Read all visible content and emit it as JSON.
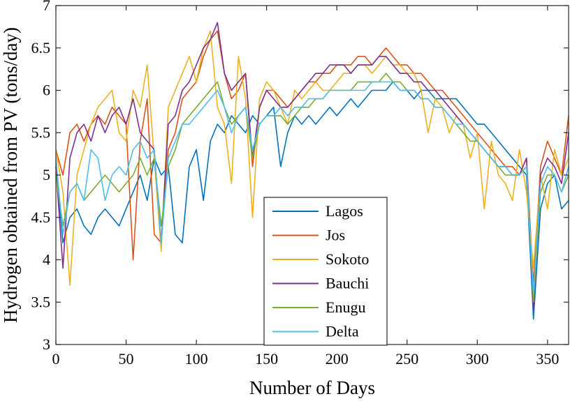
{
  "chart_data": {
    "type": "line",
    "title": "",
    "xlabel": "Number of Days",
    "ylabel": "Hydrogen obtained from PV (tons/day)",
    "xlim": [
      0,
      365
    ],
    "ylim": [
      3,
      7
    ],
    "xticks": [
      0,
      50,
      100,
      150,
      200,
      250,
      300,
      350
    ],
    "yticks": [
      3,
      3.5,
      4,
      4.5,
      5,
      5.5,
      6,
      6.5,
      7
    ],
    "xtick_labels": [
      "0",
      "50",
      "100",
      "150",
      "200",
      "250",
      "300",
      "350"
    ],
    "ytick_labels": [
      "3",
      "3.5",
      "4",
      "4.5",
      "5",
      "5.5",
      "6",
      "6.5",
      "7"
    ],
    "grid": false,
    "legend_position": "bottom-center",
    "x_day_step": 5,
    "series": [
      {
        "name": "Lagos",
        "color": "#0072BD",
        "values": [
          5.1,
          4.2,
          4.5,
          4.6,
          4.4,
          4.3,
          4.5,
          4.6,
          4.5,
          4.4,
          4.6,
          4.8,
          5.0,
          4.7,
          5.2,
          5.0,
          5.1,
          4.3,
          4.2,
          5.1,
          5.3,
          4.7,
          5.4,
          5.6,
          5.5,
          5.7,
          5.6,
          5.5,
          5.7,
          5.6,
          5.7,
          5.8,
          5.1,
          5.5,
          5.7,
          5.6,
          5.7,
          5.6,
          5.7,
          5.8,
          5.7,
          5.8,
          5.9,
          5.8,
          5.9,
          6.0,
          6.0,
          6.0,
          6.1,
          6.0,
          6.0,
          5.9,
          6.0,
          6.0,
          5.9,
          5.9,
          5.9,
          5.9,
          5.8,
          5.7,
          5.6,
          5.6,
          5.5,
          5.4,
          5.3,
          5.2,
          5.1,
          5.0,
          3.3,
          4.6,
          4.9,
          5.0,
          4.6,
          4.7
        ]
      },
      {
        "name": "Jos",
        "color": "#D95319",
        "values": [
          5.3,
          5.0,
          5.5,
          5.6,
          5.4,
          5.6,
          5.7,
          5.6,
          5.8,
          5.7,
          5.6,
          4.0,
          5.4,
          5.9,
          4.3,
          4.2,
          5.3,
          5.5,
          5.9,
          6.0,
          6.1,
          6.4,
          6.6,
          6.7,
          6.2,
          5.9,
          6.0,
          6.2,
          5.1,
          5.8,
          6.0,
          6.0,
          5.9,
          5.8,
          5.9,
          6.0,
          6.1,
          6.1,
          6.2,
          6.2,
          6.3,
          6.3,
          6.3,
          6.4,
          6.4,
          6.3,
          6.4,
          6.5,
          6.4,
          6.3,
          6.3,
          6.2,
          6.2,
          6.1,
          6.0,
          6.0,
          5.9,
          5.8,
          5.7,
          5.6,
          5.5,
          5.4,
          5.3,
          5.2,
          5.1,
          5.1,
          5.0,
          5.2,
          3.7,
          5.1,
          5.4,
          5.2,
          5.0,
          5.7
        ]
      },
      {
        "name": "Sokoto",
        "color": "#EDB120",
        "values": [
          5.3,
          4.8,
          3.7,
          5.0,
          5.3,
          5.6,
          5.8,
          5.9,
          6.0,
          5.5,
          5.4,
          6.0,
          5.8,
          6.3,
          5.2,
          4.1,
          5.8,
          6.0,
          6.2,
          6.4,
          6.1,
          6.5,
          6.7,
          5.8,
          5.6,
          4.9,
          6.4,
          5.9,
          4.5,
          5.9,
          6.1,
          6.0,
          5.8,
          5.6,
          6.0,
          5.9,
          6.0,
          6.1,
          6.0,
          6.0,
          6.1,
          6.2,
          6.2,
          6.3,
          6.3,
          6.2,
          6.3,
          6.4,
          6.3,
          6.3,
          6.2,
          6.2,
          6.0,
          5.5,
          5.9,
          5.8,
          5.5,
          5.7,
          5.6,
          5.2,
          5.5,
          4.6,
          5.4,
          5.0,
          4.9,
          4.7,
          5.3,
          4.8,
          3.9,
          5.0,
          4.6,
          5.3,
          5.0,
          5.2
        ]
      },
      {
        "name": "Bauchi",
        "color": "#7E2F8E",
        "values": [
          5.1,
          3.9,
          5.2,
          5.5,
          5.6,
          5.4,
          5.7,
          5.5,
          5.7,
          5.8,
          5.6,
          5.9,
          5.5,
          5.4,
          5.3,
          4.2,
          5.6,
          5.7,
          6.0,
          6.1,
          6.3,
          6.5,
          6.6,
          6.8,
          6.2,
          6.0,
          6.1,
          6.2,
          5.2,
          5.8,
          6.0,
          5.9,
          5.8,
          5.8,
          5.9,
          6.0,
          6.1,
          6.2,
          6.2,
          6.3,
          6.3,
          6.3,
          6.2,
          6.3,
          6.3,
          6.3,
          6.4,
          6.4,
          6.3,
          6.2,
          6.2,
          6.1,
          6.1,
          6.0,
          6.0,
          5.9,
          5.8,
          5.7,
          5.6,
          5.5,
          5.4,
          5.3,
          5.2,
          5.1,
          5.1,
          5.0,
          5.0,
          5.2,
          3.4,
          5.0,
          5.2,
          5.1,
          4.9,
          5.5
        ]
      },
      {
        "name": "Enugu",
        "color": "#77AC30",
        "values": [
          5.0,
          4.4,
          4.8,
          4.9,
          4.7,
          4.8,
          4.9,
          5.0,
          4.9,
          4.8,
          4.9,
          5.0,
          5.2,
          5.0,
          5.2,
          4.4,
          5.1,
          5.3,
          5.6,
          5.7,
          5.8,
          5.9,
          6.0,
          6.1,
          5.8,
          5.6,
          5.7,
          5.8,
          5.2,
          5.6,
          5.7,
          5.7,
          5.7,
          5.6,
          5.7,
          5.8,
          5.8,
          5.9,
          5.9,
          6.0,
          6.0,
          6.0,
          6.0,
          6.1,
          6.1,
          6.1,
          6.1,
          6.2,
          6.1,
          6.1,
          6.0,
          6.0,
          5.9,
          5.9,
          5.8,
          5.8,
          5.7,
          5.6,
          5.5,
          5.4,
          5.4,
          5.3,
          5.2,
          5.1,
          5.0,
          5.0,
          5.0,
          5.1,
          3.5,
          4.8,
          5.0,
          5.0,
          4.8,
          5.0
        ]
      },
      {
        "name": "Delta",
        "color": "#4DBEEE",
        "values": [
          5.2,
          4.3,
          4.8,
          4.9,
          4.7,
          5.3,
          5.2,
          4.7,
          5.0,
          5.1,
          5.0,
          5.3,
          5.4,
          5.2,
          5.3,
          4.2,
          5.2,
          5.4,
          5.6,
          5.6,
          5.7,
          5.8,
          5.9,
          6.0,
          5.8,
          5.5,
          5.7,
          5.8,
          5.3,
          5.6,
          5.7,
          5.7,
          5.8,
          5.7,
          5.8,
          5.8,
          5.9,
          5.9,
          5.9,
          6.0,
          6.0,
          6.0,
          6.0,
          6.0,
          6.0,
          6.1,
          6.1,
          6.1,
          6.1,
          6.0,
          6.0,
          6.0,
          5.9,
          5.9,
          5.8,
          5.8,
          5.7,
          5.6,
          5.6,
          5.5,
          5.4,
          5.3,
          5.2,
          5.1,
          5.1,
          5.0,
          5.0,
          5.1,
          3.6,
          4.9,
          5.1,
          5.0,
          4.8,
          5.1
        ]
      }
    ]
  }
}
